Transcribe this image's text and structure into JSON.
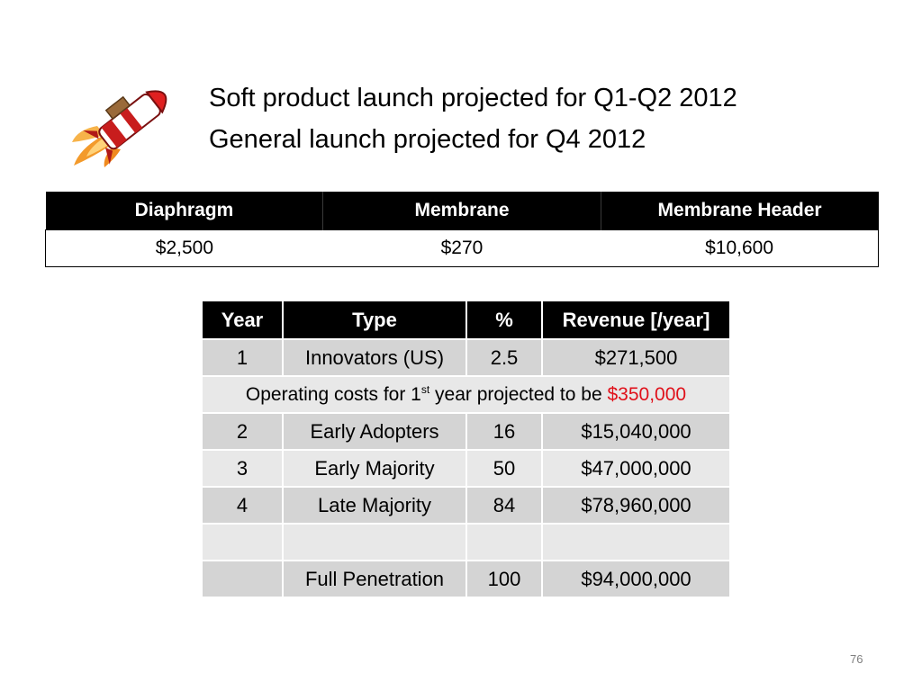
{
  "slide": {
    "headline_line1": "Soft product launch projected for Q1-Q2 2012",
    "headline_line2": "General launch projected for Q4 2012",
    "page_number": "76"
  },
  "price_table": {
    "headers": [
      "Diaphragm",
      "Membrane",
      "Membrane Header"
    ],
    "values": [
      "$2,500",
      "$270",
      "$10,600"
    ]
  },
  "revenue_table": {
    "headers": [
      "Year",
      "Type",
      "%",
      "Revenue [/year]"
    ],
    "rows": [
      {
        "year": "1",
        "type": "Innovators (US)",
        "percent": "2.5",
        "revenue": "$271,500"
      },
      {
        "year": "2",
        "type": "Early Adopters",
        "percent": "16",
        "revenue": "$15,040,000"
      },
      {
        "year": "3",
        "type": "Early Majority",
        "percent": "50",
        "revenue": "$47,000,000"
      },
      {
        "year": "4",
        "type": "Late Majority",
        "percent": "84",
        "revenue": "$78,960,000"
      },
      {
        "year": "",
        "type": "",
        "percent": "",
        "revenue": ""
      },
      {
        "year": "",
        "type": "Full Penetration",
        "percent": "100",
        "revenue": "$94,000,000"
      }
    ],
    "note": {
      "prefix": "Operating costs for 1",
      "superscript": "st",
      "middle": " year projected to be ",
      "highlight": "$350,000"
    }
  },
  "colors": {
    "header_bg": "#000000",
    "row_dark": "#d4d4d4",
    "row_light": "#e8e8e8",
    "highlight_red": "#e0101a"
  },
  "icons": {
    "rocket": "rocket-icon"
  }
}
